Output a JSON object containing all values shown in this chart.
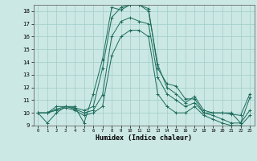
{
  "title": "",
  "xlabel": "Humidex (Indice chaleur)",
  "xlim": [
    -0.5,
    23.5
  ],
  "ylim": [
    9,
    18.5
  ],
  "yticks": [
    9,
    10,
    11,
    12,
    13,
    14,
    15,
    16,
    17,
    18
  ],
  "xticks": [
    0,
    1,
    2,
    3,
    4,
    5,
    6,
    7,
    8,
    9,
    10,
    11,
    12,
    13,
    14,
    15,
    16,
    17,
    18,
    19,
    20,
    21,
    22,
    23
  ],
  "line_color": "#1a6b5a",
  "bg_color": "#cce8e4",
  "grid_color": "#9ececa",
  "lines": [
    {
      "x": [
        0,
        1,
        2,
        3,
        4,
        5,
        6,
        7,
        8,
        9,
        10,
        11,
        12,
        13,
        14,
        15,
        16,
        17,
        18,
        19,
        20,
        21,
        22,
        23
      ],
      "y": [
        10.0,
        9.2,
        10.0,
        10.5,
        10.5,
        9.2,
        11.5,
        14.2,
        18.3,
        18.1,
        18.5,
        18.5,
        18.2,
        13.5,
        12.3,
        12.1,
        11.1,
        11.1,
        10.0,
        10.0,
        10.0,
        10.0,
        9.2,
        11.2
      ]
    },
    {
      "x": [
        0,
        1,
        2,
        3,
        4,
        5,
        6,
        7,
        8,
        9,
        10,
        11,
        12,
        13,
        14,
        15,
        16,
        17,
        18,
        19,
        20,
        21,
        22,
        23
      ],
      "y": [
        10.0,
        10.0,
        10.5,
        10.5,
        10.4,
        10.2,
        10.5,
        13.5,
        17.5,
        18.3,
        18.5,
        18.5,
        18.0,
        13.8,
        12.0,
        11.5,
        10.8,
        11.3,
        10.2,
        10.0,
        10.0,
        9.9,
        9.8,
        11.5
      ]
    },
    {
      "x": [
        0,
        1,
        2,
        3,
        4,
        5,
        6,
        7,
        8,
        9,
        10,
        11,
        12,
        13,
        14,
        15,
        16,
        17,
        18,
        19,
        20,
        21,
        22,
        23
      ],
      "y": [
        10.0,
        10.0,
        10.3,
        10.5,
        10.3,
        10.0,
        10.2,
        11.4,
        16.0,
        17.2,
        17.5,
        17.2,
        17.0,
        12.8,
        11.5,
        11.0,
        10.5,
        10.8,
        10.0,
        9.8,
        9.5,
        9.2,
        9.2,
        10.2
      ]
    },
    {
      "x": [
        0,
        1,
        2,
        3,
        4,
        5,
        6,
        7,
        8,
        9,
        10,
        11,
        12,
        13,
        14,
        15,
        16,
        17,
        18,
        19,
        20,
        21,
        22,
        23
      ],
      "y": [
        10.0,
        10.0,
        10.2,
        10.4,
        10.2,
        9.8,
        10.0,
        10.5,
        14.5,
        16.0,
        16.5,
        16.5,
        16.0,
        11.5,
        10.5,
        10.0,
        10.0,
        10.5,
        9.8,
        9.5,
        9.2,
        9.0,
        9.0,
        9.8
      ]
    }
  ]
}
